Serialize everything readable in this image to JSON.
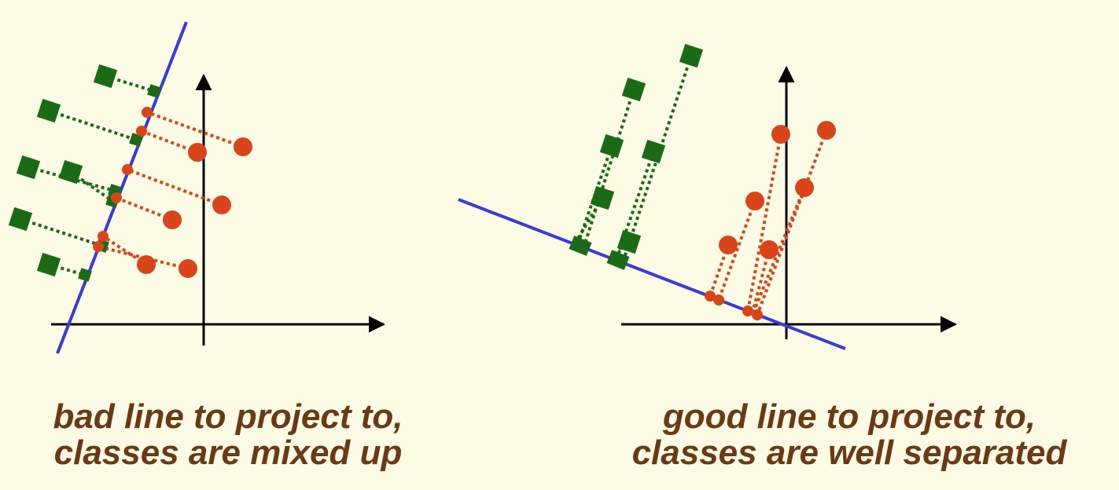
{
  "panels": [
    {
      "id": "bad",
      "caption": [
        "bad line to project to,",
        "classes are mixed up"
      ],
      "separation": "classes are mixed up"
    },
    {
      "id": "good",
      "caption": [
        "good line to project to,",
        "classes are well separated"
      ],
      "separation": "classes are well separated"
    }
  ],
  "colors": {
    "background": "#fbfbe6",
    "projection_line": "#3a3adb",
    "class_square": "#1a6a16",
    "class_circle": "#d9451b",
    "axis": "#000000",
    "caption_text": "#6b3a15"
  },
  "legend_shapes": {
    "class_a": "square",
    "class_b": "circle"
  }
}
